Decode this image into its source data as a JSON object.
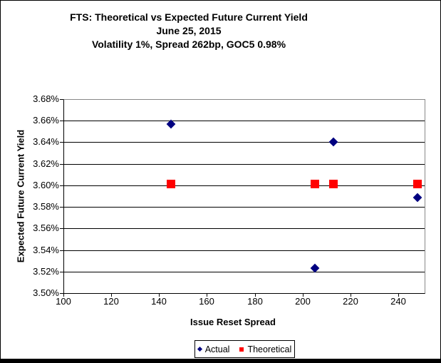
{
  "title": {
    "line1": "FTS: Theoretical vs Expected Future Current Yield",
    "line2": "June 25, 2015",
    "line3": "Volatility 1%, Spread 262bp, GOC5 0.98%"
  },
  "chart_data": {
    "type": "scatter",
    "xlabel": "Issue Reset Spread",
    "ylabel": "Expected Future Current Yield",
    "xlim": [
      100,
      251
    ],
    "ylim": [
      3.5,
      3.68
    ],
    "xticks": [
      100,
      120,
      140,
      160,
      180,
      200,
      220,
      240
    ],
    "yticks": [
      3.68,
      3.66,
      3.64,
      3.62,
      3.6,
      3.58,
      3.56,
      3.54,
      3.52,
      3.5
    ],
    "ytick_labels": [
      "3.68%",
      "3.66%",
      "3.64%",
      "3.62%",
      "3.60%",
      "3.58%",
      "3.56%",
      "3.54%",
      "3.52%",
      "3.50%"
    ],
    "grid": "horizontal",
    "legend_position": "bottom",
    "series": [
      {
        "name": "Actual",
        "marker": "diamond",
        "color": "#000080",
        "points": [
          [
            145,
            3.657
          ],
          [
            205,
            3.523
          ],
          [
            213,
            3.64
          ],
          [
            248,
            3.589
          ]
        ]
      },
      {
        "name": "Theoretical",
        "marker": "square",
        "color": "#ff0000",
        "points": [
          [
            145,
            3.601
          ],
          [
            205,
            3.601
          ],
          [
            213,
            3.601
          ],
          [
            248,
            3.601
          ]
        ]
      }
    ]
  },
  "colors": {
    "actual": "#000080",
    "theoretical": "#ff0000",
    "gridline": "#000000",
    "plot_border": "#888888"
  }
}
